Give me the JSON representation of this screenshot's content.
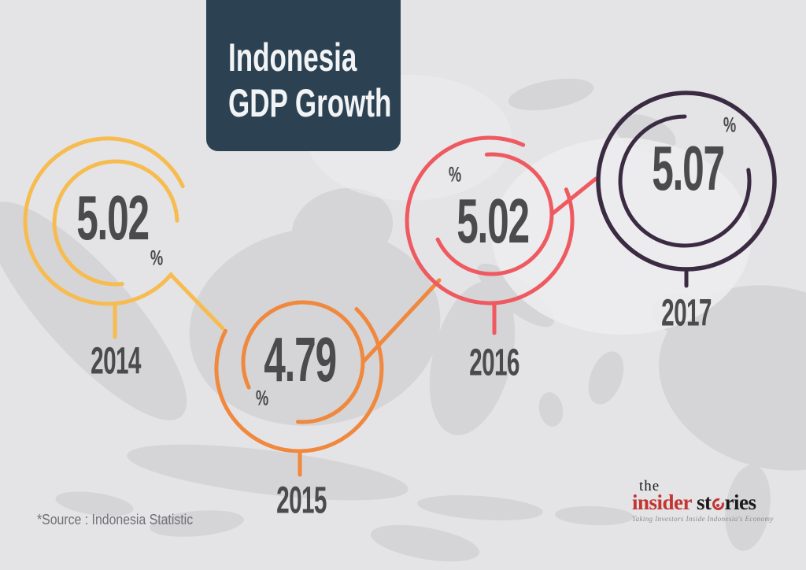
{
  "title": {
    "line1": "Indonesia",
    "line2": "GDP Growth"
  },
  "source_note": "*Source : Indonesia Statistic",
  "logo": {
    "the": "the",
    "insider": "insider",
    "stories_pre": "st",
    "stories_post": "ries",
    "tagline": "Taking Investors Inside Indonesia's Economy"
  },
  "colors": {
    "background": "#E4E3E6",
    "map": "#D5D4D7",
    "map_light_patch": "#ECEBEE",
    "title_bg": "#2C4253",
    "text_dark": "#4B4B4D",
    "source_gray": "#717074",
    "logo_red": "#C23530",
    "logo_black": "#1B1B1B",
    "tagline_gray": "#8A8A8E"
  },
  "chart_data": {
    "type": "line",
    "title": "Indonesia GDP Growth",
    "unit": "%",
    "categories": [
      "2014",
      "2015",
      "2016",
      "2017"
    ],
    "values": [
      5.02,
      4.79,
      5.02,
      5.07
    ],
    "source": "*Source : Indonesia Statistic",
    "legend_position": "none",
    "grid": false,
    "background": "indonesia-archipelago-map-silhouette",
    "points": [
      {
        "year": "2014",
        "value": "5.02",
        "unit": "%",
        "color": "#F7BC4F"
      },
      {
        "year": "2015",
        "value": "4.79",
        "unit": "%",
        "color": "#F0883D"
      },
      {
        "year": "2016",
        "value": "5.02",
        "unit": "%",
        "color": "#EE5A60"
      },
      {
        "year": "2017",
        "value": "5.07",
        "unit": "%",
        "color": "#3A2B42"
      }
    ]
  }
}
